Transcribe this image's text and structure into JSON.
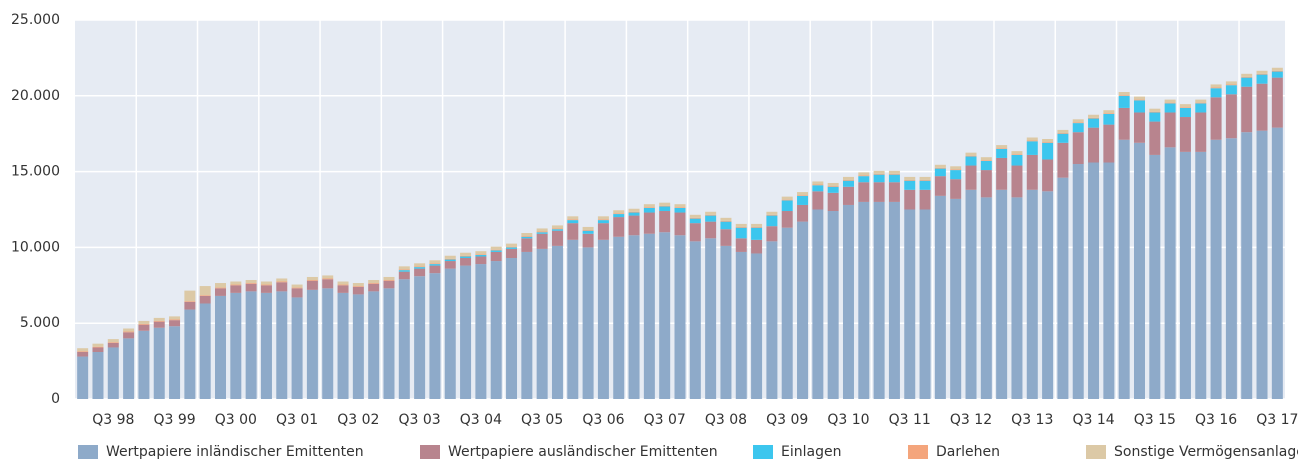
{
  "chart_data": {
    "type": "stacked_bar",
    "categories": [
      null,
      null,
      "Q3 98",
      null,
      null,
      null,
      "Q3 99",
      null,
      null,
      null,
      "Q3 00",
      null,
      null,
      null,
      "Q3 01",
      null,
      null,
      null,
      "Q3 02",
      null,
      null,
      null,
      "Q3 03",
      null,
      null,
      null,
      "Q3 04",
      null,
      null,
      null,
      "Q3 05",
      null,
      null,
      null,
      "Q3 06",
      null,
      null,
      null,
      "Q3 07",
      null,
      null,
      null,
      "Q3 08",
      null,
      null,
      null,
      "Q3 09",
      null,
      null,
      null,
      "Q3 10",
      null,
      null,
      null,
      "Q3 11",
      null,
      null,
      null,
      "Q3 12",
      null,
      null,
      null,
      "Q3 13",
      null,
      null,
      null,
      "Q3 14",
      null,
      null,
      null,
      "Q3 15",
      null,
      null,
      null,
      "Q3 16",
      null,
      null,
      null,
      "Q3 17"
    ],
    "series": [
      {
        "name": "Wertpapiere inländischer Emittenten",
        "color": "#8eaac9",
        "values": [
          2800,
          3100,
          3400,
          4000,
          4500,
          4700,
          4800,
          5900,
          6300,
          6800,
          7000,
          7100,
          7000,
          7100,
          6700,
          7200,
          7300,
          7000,
          6900,
          7100,
          7300,
          7900,
          8100,
          8300,
          8600,
          8800,
          8900,
          9100,
          9300,
          9700,
          9900,
          10100,
          10500,
          10000,
          10500,
          10700,
          10800,
          10900,
          11000,
          10800,
          10400,
          10600,
          10100,
          9700,
          9600,
          10400,
          11300,
          11700,
          12500,
          12400,
          12800,
          13000,
          13000,
          13000,
          12500,
          12500,
          13400,
          13200,
          13800,
          13300,
          13800,
          13300,
          13800,
          13700,
          14600,
          15500,
          15600,
          15600,
          17100,
          16900,
          16100,
          16600,
          16300,
          16300,
          17100,
          17200,
          17600,
          17700,
          17900
        ]
      },
      {
        "name": "Wertpapiere ausländischer Emittenten",
        "color": "#b8848e",
        "values": [
          300,
          300,
          300,
          400,
          400,
          400,
          400,
          500,
          500,
          500,
          500,
          500,
          500,
          600,
          600,
          600,
          600,
          500,
          500,
          500,
          500,
          500,
          500,
          500,
          500,
          500,
          500,
          600,
          600,
          900,
          1000,
          1000,
          1100,
          900,
          1100,
          1300,
          1300,
          1400,
          1400,
          1500,
          1200,
          1100,
          1100,
          900,
          900,
          1000,
          1100,
          1100,
          1200,
          1200,
          1200,
          1300,
          1300,
          1300,
          1300,
          1300,
          1300,
          1300,
          1600,
          1800,
          2100,
          2100,
          2300,
          2100,
          2300,
          2100,
          2300,
          2500,
          2100,
          2000,
          2200,
          2300,
          2300,
          2600,
          2800,
          2900,
          3000,
          3100,
          3300
        ]
      },
      {
        "name": "Einlagen",
        "color": "#3cc6ee",
        "values": [
          0,
          0,
          0,
          0,
          0,
          0,
          0,
          0,
          0,
          0,
          0,
          0,
          0,
          0,
          0,
          0,
          0,
          0,
          0,
          0,
          0,
          100,
          100,
          100,
          100,
          100,
          100,
          100,
          100,
          100,
          100,
          100,
          200,
          200,
          200,
          200,
          200,
          300,
          300,
          300,
          300,
          400,
          500,
          700,
          800,
          700,
          700,
          600,
          400,
          400,
          400,
          400,
          500,
          500,
          600,
          600,
          500,
          600,
          600,
          600,
          600,
          700,
          900,
          1100,
          600,
          600,
          600,
          700,
          800,
          800,
          600,
          600,
          600,
          600,
          600,
          600,
          600,
          600,
          400
        ]
      },
      {
        "name": "Darlehen",
        "color": "#f4a57c",
        "values": [
          50,
          50,
          50,
          50,
          50,
          50,
          50,
          50,
          50,
          50,
          50,
          50,
          50,
          50,
          50,
          50,
          50,
          50,
          50,
          50,
          50,
          50,
          50,
          50,
          50,
          50,
          50,
          50,
          50,
          50,
          50,
          50,
          50,
          50,
          50,
          50,
          50,
          50,
          50,
          50,
          50,
          50,
          50,
          50,
          50,
          50,
          50,
          50,
          50,
          50,
          50,
          50,
          50,
          50,
          50,
          50,
          50,
          50,
          50,
          50,
          50,
          50,
          50,
          50,
          50,
          50,
          50,
          50,
          50,
          50,
          50,
          50,
          50,
          50,
          50,
          50,
          50,
          50,
          50
        ]
      },
      {
        "name": "Sonstige Vermögensanlagen",
        "color": "#dcc9a6",
        "values": [
          200,
          200,
          200,
          200,
          200,
          200,
          200,
          700,
          600,
          300,
          200,
          200,
          200,
          200,
          200,
          200,
          200,
          200,
          200,
          200,
          200,
          200,
          200,
          200,
          200,
          200,
          200,
          200,
          200,
          200,
          200,
          200,
          200,
          200,
          200,
          200,
          200,
          200,
          200,
          200,
          200,
          200,
          200,
          200,
          200,
          200,
          200,
          200,
          200,
          200,
          200,
          200,
          200,
          200,
          200,
          200,
          200,
          200,
          200,
          200,
          200,
          200,
          200,
          200,
          200,
          200,
          200,
          200,
          200,
          200,
          200,
          200,
          200,
          200,
          200,
          200,
          200,
          200,
          200
        ]
      }
    ],
    "ylim": [
      0,
      25000
    ],
    "yticks": [
      {
        "value": 0,
        "label": "0"
      },
      {
        "value": 5000,
        "label": "5.000"
      },
      {
        "value": 10000,
        "label": "10.000"
      },
      {
        "value": 15000,
        "label": "15.000"
      },
      {
        "value": 20000,
        "label": "20.000"
      },
      {
        "value": 25000,
        "label": "25.000"
      }
    ],
    "grid": true
  }
}
